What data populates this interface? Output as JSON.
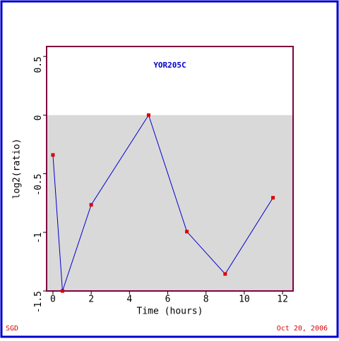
{
  "chart_data": {
    "type": "line",
    "title": "YOR205C",
    "xlabel": "Time (hours)",
    "ylabel": "log2(ratio)",
    "x": [
      0,
      0.5,
      2,
      5,
      7,
      9,
      11.5
    ],
    "series": [
      {
        "color": "#0000cc",
        "marker_color": "#dd0000",
        "values": [
          -0.34,
          -1.5,
          -0.765,
          0,
          -0.994,
          -1.355,
          -0.705
        ]
      }
    ],
    "xlim": [
      -0.33,
      12.55
    ],
    "ylim": [
      -1.5,
      0.585
    ],
    "xticks": [
      0,
      2,
      4,
      6,
      8,
      10,
      12
    ],
    "yticks": [
      0.5,
      0,
      -0.5,
      -1,
      -1.5
    ],
    "shade_color": "#d9d9d9",
    "frame_color": "#800040"
  },
  "footer": {
    "left": "SGD",
    "right": "Oct 20, 2006"
  }
}
